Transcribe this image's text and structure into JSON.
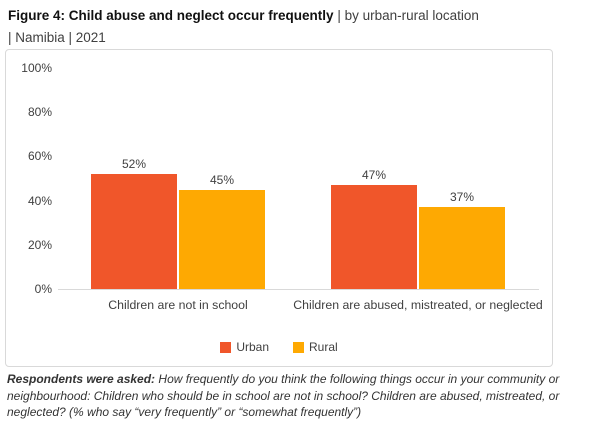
{
  "title": {
    "bold": "Figure 4: Child abuse and neglect occur frequently",
    "regular": " | by urban-rural location",
    "line2": "| Namibia | 2021"
  },
  "chart_data": {
    "type": "bar",
    "title": "Figure 4: Child abuse and neglect occur frequently | by urban-rural location | Namibia | 2021",
    "categories": [
      "Children are not in school",
      "Children are abused, mistreated, or neglected"
    ],
    "series": [
      {
        "name": "Urban",
        "color": "#F0562A",
        "values": [
          52,
          47
        ]
      },
      {
        "name": "Rural",
        "color": "#FEA902",
        "values": [
          45,
          37
        ]
      }
    ],
    "value_suffix": "%",
    "yticks": [
      0,
      20,
      40,
      60,
      80,
      100
    ],
    "ylim": [
      0,
      100
    ],
    "grid": false,
    "legend_position": "bottom",
    "axis_line_color": "#d9d9d9",
    "text_color": "#404040"
  },
  "footnote": {
    "bold": "Respondents were asked:",
    "text": " How frequently do you think the following things occur in your community or neighbourhood: Children who should be in school are not in school? Children are abused, mistreated, or neglected? (% who say “very frequently” or “somewhat frequently”)"
  }
}
